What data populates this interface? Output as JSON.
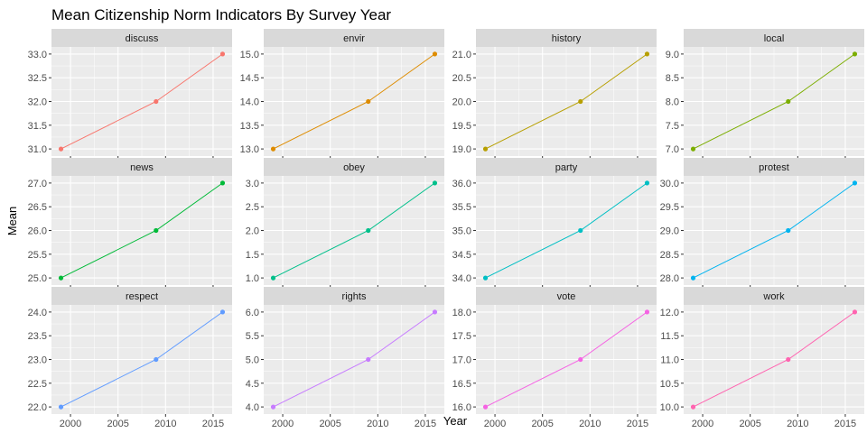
{
  "chart_data": {
    "type": "line",
    "title": "Mean Citizenship Norm Indicators By Survey Year",
    "xlabel": "Year",
    "ylabel": "Mean",
    "x": [
      1999,
      2009,
      2016
    ],
    "x_ticks": [
      2000,
      2005,
      2010,
      2015
    ],
    "xlim": [
      1998,
      2017
    ],
    "grid": true,
    "legend": "none",
    "facets": [
      {
        "name": "discuss",
        "color": "#F8766D",
        "values": [
          31,
          32,
          33
        ],
        "y_ticks": [
          "31.0",
          "31.5",
          "32.0",
          "32.5",
          "33.0"
        ]
      },
      {
        "name": "envir",
        "color": "#DE8C00",
        "values": [
          13,
          14,
          15
        ],
        "y_ticks": [
          "13.0",
          "13.5",
          "14.0",
          "14.5",
          "15.0"
        ]
      },
      {
        "name": "history",
        "color": "#B79F00",
        "values": [
          19,
          20,
          21
        ],
        "y_ticks": [
          "19.0",
          "19.5",
          "20.0",
          "20.5",
          "21.0"
        ]
      },
      {
        "name": "local",
        "color": "#7CAE00",
        "values": [
          7,
          8,
          9
        ],
        "y_ticks": [
          "7.0",
          "7.5",
          "8.0",
          "8.5",
          "9.0"
        ]
      },
      {
        "name": "news",
        "color": "#00BA38",
        "values": [
          25,
          26,
          27
        ],
        "y_ticks": [
          "25.0",
          "25.5",
          "26.0",
          "26.5",
          "27.0"
        ]
      },
      {
        "name": "obey",
        "color": "#00C08B",
        "values": [
          1,
          2,
          3
        ],
        "y_ticks": [
          "1.0",
          "1.5",
          "2.0",
          "2.5",
          "3.0"
        ]
      },
      {
        "name": "party",
        "color": "#00BFC4",
        "values": [
          34,
          35,
          36
        ],
        "y_ticks": [
          "34.0",
          "34.5",
          "35.0",
          "35.5",
          "36.0"
        ]
      },
      {
        "name": "protest",
        "color": "#00B4F0",
        "values": [
          28,
          29,
          30
        ],
        "y_ticks": [
          "28.0",
          "28.5",
          "29.0",
          "29.5",
          "30.0"
        ]
      },
      {
        "name": "respect",
        "color": "#619CFF",
        "values": [
          22,
          23,
          24
        ],
        "y_ticks": [
          "22.0",
          "22.5",
          "23.0",
          "23.5",
          "24.0"
        ]
      },
      {
        "name": "rights",
        "color": "#C77CFF",
        "values": [
          4,
          5,
          6
        ],
        "y_ticks": [
          "4.0",
          "4.5",
          "5.0",
          "5.5",
          "6.0"
        ]
      },
      {
        "name": "vote",
        "color": "#F564E3",
        "values": [
          16,
          17,
          18
        ],
        "y_ticks": [
          "16.0",
          "16.5",
          "17.0",
          "17.5",
          "18.0"
        ]
      },
      {
        "name": "work",
        "color": "#FF64B0",
        "values": [
          10,
          11,
          12
        ],
        "y_ticks": [
          "10.0",
          "10.5",
          "11.0",
          "11.5",
          "12.0"
        ]
      }
    ]
  },
  "colors": {
    "panel_background": "#EBEBEB",
    "strip_background": "#D9D9D9",
    "grid": "#FFFFFF"
  }
}
